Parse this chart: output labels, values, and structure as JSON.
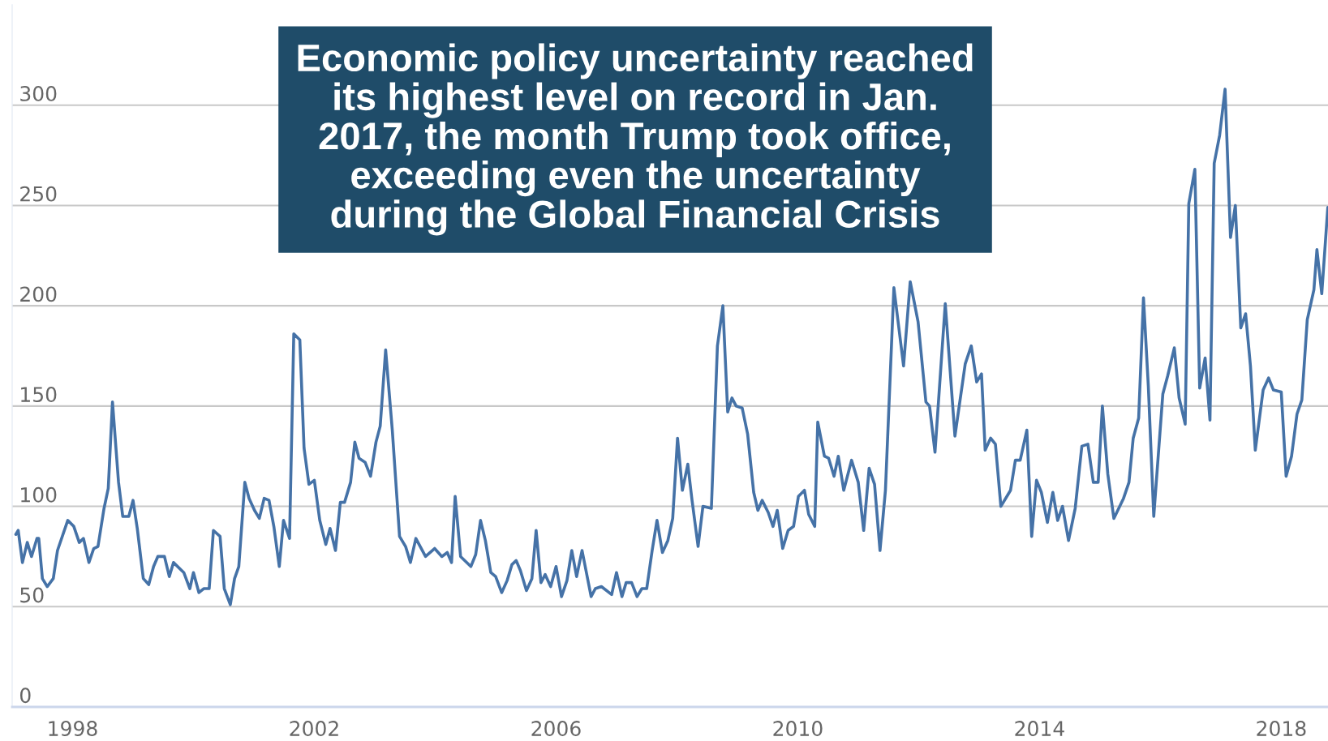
{
  "chart_data": {
    "type": "line",
    "xlim": [
      1997.0,
      2018.8
    ],
    "xticks": [
      1998,
      2002,
      2006,
      2010,
      2014,
      2018
    ],
    "ylim": [
      0,
      350
    ],
    "yticks": [
      0,
      50,
      100,
      150,
      200,
      250,
      300
    ],
    "grid": "y",
    "marker": "none",
    "line_style": "solid",
    "series": [
      {
        "color": "#4572a7",
        "x": [
          1997.06,
          1997.1,
          1997.17,
          1997.25,
          1997.32,
          1997.41,
          1997.44,
          1997.5,
          1997.58,
          1997.68,
          1997.75,
          1997.92,
          1998.02,
          1998.11,
          1998.18,
          1998.27,
          1998.35,
          1998.42,
          1998.52,
          1998.59,
          1998.66,
          1998.76,
          1998.83,
          1998.93,
          1999.0,
          1999.07,
          1999.17,
          1999.26,
          1999.34,
          1999.41,
          1999.52,
          1999.6,
          1999.67,
          1999.84,
          1999.94,
          2000.0,
          2000.09,
          2000.17,
          2000.26,
          2000.33,
          2000.44,
          2000.51,
          2000.61,
          2000.68,
          2000.75,
          2000.85,
          2000.92,
          2001.01,
          2001.09,
          2001.17,
          2001.25,
          2001.33,
          2001.42,
          2001.49,
          2001.59,
          2001.66,
          2001.76,
          2001.83,
          2001.91,
          2002.0,
          2002.09,
          2002.19,
          2002.26,
          2002.35,
          2002.43,
          2002.5,
          2002.6,
          2002.67,
          2002.74,
          2002.84,
          2002.93,
          2003.02,
          2003.09,
          2003.18,
          2003.29,
          2003.41,
          2003.51,
          2003.59,
          2003.68,
          2003.84,
          2003.99,
          2004.11,
          2004.2,
          2004.27,
          2004.33,
          2004.42,
          2004.59,
          2004.67,
          2004.75,
          2004.83,
          2004.92,
          2005.0,
          2005.1,
          2005.19,
          2005.27,
          2005.34,
          2005.41,
          2005.51,
          2005.6,
          2005.67,
          2005.75,
          2005.82,
          2005.91,
          2006.0,
          2006.09,
          2006.18,
          2006.26,
          2006.34,
          2006.43,
          2006.58,
          2006.65,
          2006.75,
          2006.92,
          2007.0,
          2007.09,
          2007.16,
          2007.25,
          2007.34,
          2007.42,
          2007.5,
          2007.59,
          2007.67,
          2007.76,
          2007.85,
          2007.93,
          2008.01,
          2008.09,
          2008.18,
          2008.25,
          2008.35,
          2008.43,
          2008.57,
          2008.67,
          2008.76,
          2008.84,
          2008.91,
          2008.98,
          2009.08,
          2009.17,
          2009.27,
          2009.34,
          2009.41,
          2009.51,
          2009.59,
          2009.66,
          2009.75,
          2009.84,
          2009.93,
          2010.01,
          2010.11,
          2010.18,
          2010.28,
          2010.33,
          2010.44,
          2010.51,
          2010.6,
          2010.67,
          2010.76,
          2010.89,
          2011.0,
          2011.09,
          2011.18,
          2011.27,
          2011.36,
          2011.45,
          2011.59,
          2011.75,
          2011.86,
          2011.99,
          2012.12,
          2012.18,
          2012.27,
          2012.44,
          2012.6,
          2012.77,
          2012.87,
          2012.96,
          2013.04,
          2013.1,
          2013.19,
          2013.27,
          2013.36,
          2013.52,
          2013.6,
          2013.68,
          2013.79,
          2013.87,
          2013.95,
          2014.03,
          2014.13,
          2014.22,
          2014.3,
          2014.38,
          2014.48,
          2014.59,
          2014.7,
          2014.8,
          2014.89,
          2014.97,
          2015.04,
          2015.13,
          2015.23,
          2015.39,
          2015.48,
          2015.55,
          2015.64,
          2015.72,
          2015.8,
          2015.89,
          2016.04,
          2016.12,
          2016.23,
          2016.31,
          2016.41,
          2016.47,
          2016.57,
          2016.65,
          2016.74,
          2016.82,
          2016.89,
          2016.98,
          2017.07,
          2017.16,
          2017.24,
          2017.33,
          2017.41,
          2017.49,
          2017.57,
          2017.7,
          2017.79,
          2017.87,
          2018.0,
          2018.08,
          2018.17,
          2018.26,
          2018.34,
          2018.43,
          2018.54,
          2018.59,
          2018.67,
          2018.77
        ],
        "values": [
          86,
          88,
          72,
          82,
          75,
          84,
          84,
          64,
          60,
          64,
          78,
          93,
          90,
          82,
          84,
          72,
          79,
          80,
          99,
          109,
          152,
          112,
          95,
          95,
          103,
          89,
          64,
          61,
          70,
          75,
          75,
          65,
          72,
          67,
          59,
          67,
          57,
          59,
          59,
          88,
          85,
          59,
          51,
          64,
          70,
          112,
          104,
          98,
          94,
          104,
          103,
          90,
          70,
          93,
          84,
          186,
          183,
          129,
          111,
          113,
          93,
          81,
          89,
          78,
          102,
          102,
          112,
          132,
          124,
          122,
          115,
          132,
          140,
          178,
          138,
          85,
          80,
          72,
          84,
          75,
          79,
          75,
          77,
          72,
          105,
          75,
          70,
          76,
          93,
          83,
          67,
          65,
          57,
          63,
          71,
          73,
          68,
          58,
          64,
          88,
          62,
          66,
          60,
          70,
          55,
          63,
          78,
          65,
          78,
          55,
          59,
          60,
          56,
          67,
          55,
          62,
          62,
          55,
          59,
          59,
          78,
          93,
          77,
          83,
          94,
          134,
          108,
          121,
          103,
          80,
          100,
          99,
          180,
          200,
          147,
          154,
          150,
          149,
          136,
          107,
          98,
          103,
          97,
          90,
          98,
          79,
          88,
          90,
          105,
          108,
          96,
          90,
          142,
          125,
          124,
          115,
          125,
          108,
          123,
          112,
          88,
          119,
          111,
          78,
          108,
          209,
          170,
          212,
          192,
          152,
          150,
          127,
          201,
          135,
          171,
          180,
          162,
          166,
          128,
          134,
          131,
          100,
          108,
          123,
          123,
          138,
          85,
          113,
          107,
          92,
          107,
          93,
          100,
          83,
          99,
          130,
          131,
          112,
          112,
          150,
          116,
          94,
          104,
          112,
          134,
          144,
          204,
          160,
          95,
          156,
          165,
          179,
          154,
          141,
          251,
          268,
          159,
          174,
          143,
          271,
          285,
          308,
          234,
          250,
          189,
          196,
          170,
          128,
          158,
          164,
          158,
          157,
          115,
          125,
          146,
          153,
          193,
          208,
          228,
          206,
          249
        ]
      }
    ],
    "annotations": [
      "Economic policy uncertainty reached\nits highest level on record in Jan.\n2017, the month Trump took office,\nexceeding even the uncertainty\nduring the Global Financial Crisis"
    ]
  }
}
